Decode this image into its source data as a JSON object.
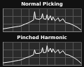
{
  "chart_data": [
    {
      "type": "line",
      "title": "Normal Picking",
      "log": "x",
      "grid": true,
      "tick_labels": false,
      "color": "#ffffff",
      "x": [
        20,
        40,
        60,
        80,
        100,
        150,
        200,
        300,
        330,
        360,
        500,
        600,
        660,
        720,
        900,
        990,
        1100,
        1320,
        1500,
        1650,
        2000,
        2640,
        3000,
        4000,
        5000,
        7000,
        10000,
        15000,
        20000
      ],
      "values": [
        -80,
        -75,
        -72,
        -70,
        -68,
        -60,
        -55,
        -45,
        -12,
        -40,
        -42,
        -38,
        -20,
        -40,
        -42,
        -24,
        -45,
        -28,
        -46,
        -32,
        -48,
        -36,
        -50,
        -40,
        -55,
        -58,
        -65,
        -75,
        -85
      ],
      "xlim": [
        20,
        20000
      ],
      "xticks": [
        20,
        50,
        100,
        200,
        500,
        1000,
        2000,
        5000,
        10000,
        20000
      ],
      "ylim": [
        -90,
        0
      ],
      "yticks": [
        -90,
        -60,
        -30,
        0
      ]
    },
    {
      "type": "line",
      "title": "Pinched Harmonic",
      "log": "x",
      "grid": true,
      "tick_labels": false,
      "color": "#ffffff",
      "x": [
        20,
        40,
        60,
        80,
        100,
        150,
        200,
        300,
        330,
        360,
        500,
        600,
        660,
        720,
        900,
        990,
        1100,
        1320,
        1500,
        1650,
        2000,
        2640,
        3000,
        4000,
        5000,
        7000,
        10000,
        15000,
        20000
      ],
      "values": [
        -82,
        -78,
        -74,
        -72,
        -70,
        -62,
        -58,
        -50,
        -30,
        -45,
        -44,
        -40,
        -22,
        -42,
        -40,
        -14,
        -38,
        -24,
        -40,
        -26,
        -42,
        -30,
        -44,
        -34,
        -48,
        -52,
        -60,
        -72,
        -84
      ],
      "xlim": [
        20,
        20000
      ],
      "xticks": [
        20,
        50,
        100,
        200,
        500,
        1000,
        2000,
        5000,
        10000,
        20000
      ],
      "ylim": [
        -90,
        0
      ],
      "yticks": [
        -90,
        -60,
        -30,
        0
      ]
    }
  ]
}
